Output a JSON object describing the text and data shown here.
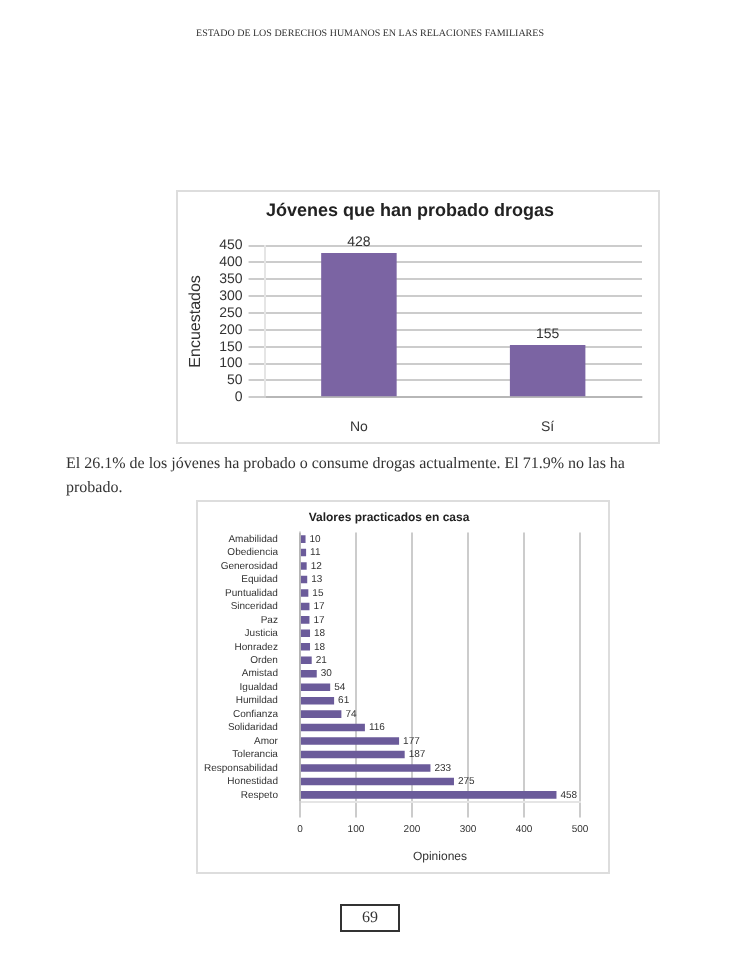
{
  "chart_data": [
    {
      "type": "bar",
      "title": "Jóvenes que han probado drogas",
      "ylabel": "Encuestados",
      "categories": [
        "No",
        "Sí"
      ],
      "values": [
        428,
        155
      ],
      "color": "#7b64a3",
      "ylim": [
        0,
        450
      ],
      "yticks": [
        0,
        50,
        100,
        150,
        200,
        250,
        300,
        350,
        400,
        450
      ],
      "grid": "y",
      "data_labels": true,
      "legend": false,
      "annotations": [
        "ESTADO DE LOS DERECHOS HUMANOS EN LAS RELACIONES FAMILIARES",
        "El 26.1% de los jóvenes ha probado o consume drogas actualmente. El 71.9% no las ha probado."
      ]
    },
    {
      "type": "bar",
      "orientation": "horizontal",
      "title": "Valores practicados en casa",
      "xlabel": "Opiniones",
      "categories": [
        "Amabilidad",
        "Obediencia",
        "Generosidad",
        "Equidad",
        "Puntualidad",
        "Sinceridad",
        "Paz",
        "Justicia",
        "Honradez",
        "Orden",
        "Amistad",
        "Igualdad",
        "Humildad",
        "Confianza",
        "Solidaridad",
        "Amor",
        "Tolerancia",
        "Responsabilidad",
        "Honestidad",
        "Respeto"
      ],
      "values": [
        10,
        11,
        12,
        13,
        15,
        17,
        17,
        18,
        18,
        21,
        30,
        54,
        61,
        74,
        116,
        177,
        187,
        233,
        275,
        458
      ],
      "color": "#6b5b9a",
      "xlim": [
        0,
        500
      ],
      "xticks": [
        0,
        100,
        200,
        300,
        400,
        500
      ],
      "grid": "x",
      "data_labels": true,
      "legend": false,
      "annotations": [
        "69"
      ]
    }
  ]
}
